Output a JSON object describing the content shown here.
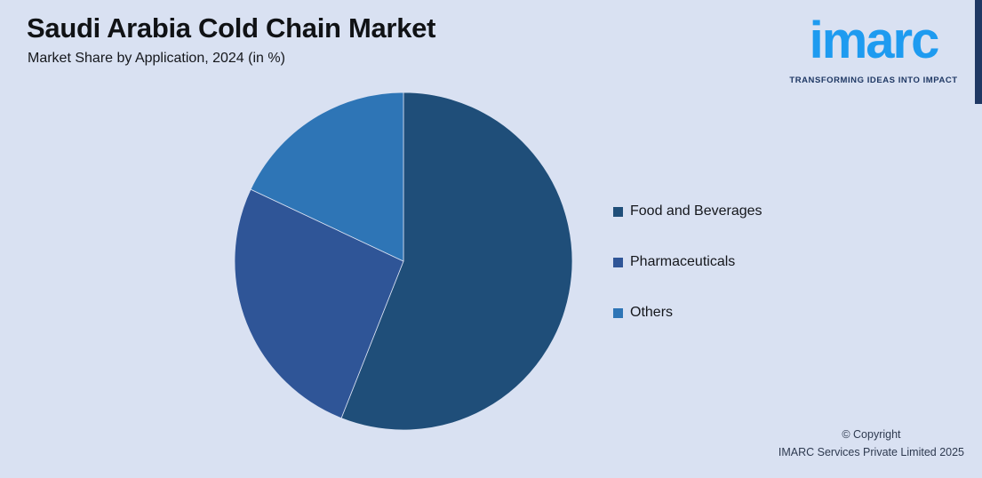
{
  "page": {
    "background_color": "#D9E1F2"
  },
  "header": {
    "title": "Saudi Arabia Cold Chain Market",
    "subtitle": "Market Share by Application, 2024 (in %)"
  },
  "branding": {
    "logo_text": "imarc",
    "logo_color": "#1E9BF0",
    "tagline": "TRANSFORMING IDEAS INTO IMPACT",
    "tagline_color": "#1F3864",
    "corner_bar_color": "#1F3864"
  },
  "chart_data": {
    "type": "pie",
    "title": "Saudi Arabia Cold Chain Market",
    "subtitle": "Market Share by Application, 2024 (in %)",
    "year": "2024",
    "unit": "%",
    "categories": [
      "Food and Beverages",
      "Pharmaceuticals",
      "Others"
    ],
    "values": [
      56,
      26,
      18
    ],
    "colors": [
      "#1F4E79",
      "#2F5597",
      "#2E75B6"
    ],
    "start_angle_deg": 0,
    "direction": "clockwise",
    "legend_position": "right",
    "data_labels_shown": false,
    "slice_separator_color": "#D9E1F2"
  },
  "legend": {
    "items": [
      {
        "label": "Food and Beverages",
        "color": "#1F4E79"
      },
      {
        "label": "Pharmaceuticals",
        "color": "#2F5597"
      },
      {
        "label": "Others",
        "color": "#2E75B6"
      }
    ]
  },
  "footer": {
    "copyright_line1": "© Copyright",
    "copyright_line2": "IMARC Services Private Limited 2025"
  }
}
